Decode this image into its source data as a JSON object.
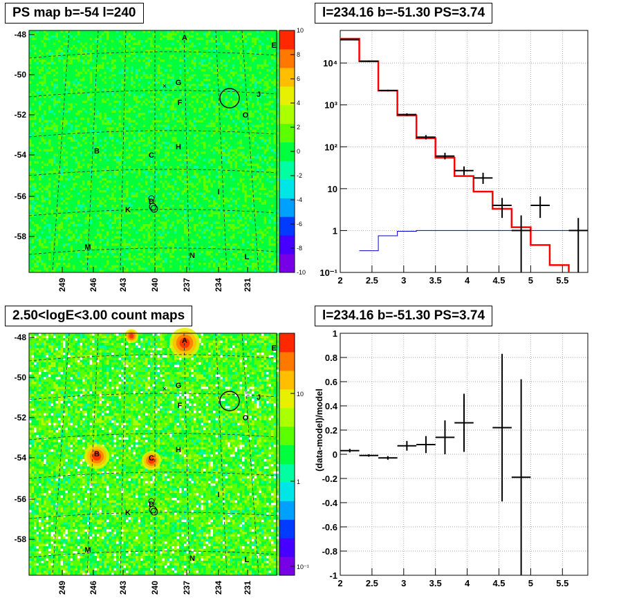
{
  "titles": {
    "ps_map": "PS map b=-54 l=240",
    "spectrum": "l=234.16 b=-51.30 PS=3.74",
    "count_map": "2.50<logE<3.00 count maps",
    "residual": "l=234.16 b=-51.30 PS=3.74"
  },
  "chart_data": [
    {
      "type": "heatmap",
      "name": "PS map",
      "x_ticks": [
        "249",
        "246",
        "243",
        "240",
        "237",
        "234",
        "231"
      ],
      "y_ticks": [
        "-48",
        "-50",
        "-52",
        "-54",
        "-56",
        "-58"
      ],
      "colorbar": {
        "ticks": [
          "10",
          "8",
          "6",
          "4",
          "2",
          "0",
          "-2",
          "-4",
          "-6",
          "-8",
          "-10"
        ],
        "range": [
          -10,
          10
        ]
      },
      "markers": [
        "A",
        "E",
        "G",
        "F",
        "J",
        "O",
        "B",
        "C",
        "H",
        "I",
        "D",
        "K",
        "M",
        "N",
        "L"
      ]
    },
    {
      "type": "line",
      "name": "spectrum",
      "log_y": true,
      "xlim": [
        2.0,
        5.9
      ],
      "ylim": [
        0.1,
        60000
      ],
      "x_ticks": [
        "2",
        "2.5",
        "3",
        "3.5",
        "4",
        "4.5",
        "5",
        "5.5"
      ],
      "y_ticks": [
        "10⁴",
        "10³",
        "10²",
        "10",
        "1",
        "10⁻¹"
      ],
      "model_red_step": {
        "bin_edges": [
          2.0,
          2.3,
          2.6,
          2.9,
          3.2,
          3.5,
          3.8,
          4.1,
          4.4,
          4.7,
          5.0,
          5.3,
          5.6,
          5.9
        ],
        "values": [
          38000,
          11000,
          2200,
          560,
          160,
          55,
          20,
          8.5,
          3.3,
          1.2,
          0.45,
          0.15,
          0.05
        ]
      },
      "point_source_blue_step": {
        "bin_edges": [
          2.3,
          2.6,
          2.9,
          3.2,
          3.5,
          3.8,
          4.1,
          4.4,
          4.7,
          5.0,
          5.3,
          5.6,
          5.9
        ],
        "values": [
          0.33,
          0.75,
          0.96,
          1.0,
          1.0,
          1.0,
          1.0,
          1.0,
          1.0,
          1.0,
          1.0,
          1.0
        ]
      },
      "data_points": [
        {
          "x": 2.15,
          "y": 36000,
          "ylo": 35000,
          "yhi": 37000
        },
        {
          "x": 2.45,
          "y": 11000,
          "ylo": 10500,
          "yhi": 11500
        },
        {
          "x": 2.75,
          "y": 2200,
          "ylo": 2100,
          "yhi": 2300
        },
        {
          "x": 3.05,
          "y": 590,
          "ylo": 550,
          "yhi": 630
        },
        {
          "x": 3.35,
          "y": 170,
          "ylo": 150,
          "yhi": 190
        },
        {
          "x": 3.65,
          "y": 60,
          "ylo": 50,
          "yhi": 72
        },
        {
          "x": 3.95,
          "y": 27,
          "ylo": 21,
          "yhi": 34
        },
        {
          "x": 4.25,
          "y": 18,
          "ylo": 13,
          "yhi": 24
        },
        {
          "x": 4.55,
          "y": 4.0,
          "ylo": 2.0,
          "yhi": 6.0
        },
        {
          "x": 4.85,
          "y": 1.0,
          "ylo": 0.1,
          "yhi": 2.3
        },
        {
          "x": 5.15,
          "y": 4.0,
          "ylo": 2.0,
          "yhi": 6.5
        },
        {
          "x": 5.75,
          "y": 1.0,
          "ylo": 0.1,
          "yhi": 2.0
        }
      ]
    },
    {
      "type": "heatmap",
      "name": "count maps",
      "x_ticks": [
        "249",
        "246",
        "243",
        "240",
        "237",
        "234",
        "231"
      ],
      "y_ticks": [
        "-48",
        "-50",
        "-52",
        "-54",
        "-56",
        "-58"
      ],
      "colorbar": {
        "log": true,
        "ticks": [
          "10",
          "1",
          "10⁻¹"
        ]
      },
      "markers": [
        "A",
        "E",
        "G",
        "F",
        "J",
        "O",
        "B",
        "C",
        "H",
        "I",
        "D",
        "K",
        "M",
        "N",
        "L"
      ]
    },
    {
      "type": "scatter",
      "name": "residual",
      "ylabel": "(data-model)/model",
      "xlim": [
        2.0,
        5.9
      ],
      "ylim": [
        -1.0,
        1.0
      ],
      "x_ticks": [
        "2",
        "2.5",
        "3",
        "3.5",
        "4",
        "4.5",
        "5",
        "5.5"
      ],
      "y_ticks": [
        "1",
        "0.8",
        "0.6",
        "0.4",
        "0.2",
        "0",
        "-0.2",
        "-0.4",
        "-0.6",
        "-0.8",
        "-1"
      ],
      "points": [
        {
          "x": 2.15,
          "y": 0.03,
          "ylo": 0.015,
          "yhi": 0.045
        },
        {
          "x": 2.45,
          "y": -0.01,
          "ylo": -0.02,
          "yhi": 0.0
        },
        {
          "x": 2.75,
          "y": -0.03,
          "ylo": -0.045,
          "yhi": -0.015
        },
        {
          "x": 3.05,
          "y": 0.07,
          "ylo": 0.03,
          "yhi": 0.11
        },
        {
          "x": 3.35,
          "y": 0.08,
          "ylo": 0.01,
          "yhi": 0.15
        },
        {
          "x": 3.65,
          "y": 0.14,
          "ylo": 0.0,
          "yhi": 0.28
        },
        {
          "x": 3.95,
          "y": 0.26,
          "ylo": 0.02,
          "yhi": 0.5
        },
        {
          "x": 4.55,
          "y": 0.22,
          "ylo": -0.39,
          "yhi": 0.83
        },
        {
          "x": 4.85,
          "y": -0.19,
          "ylo": -1.0,
          "yhi": 0.62
        }
      ]
    }
  ],
  "colors": {
    "model": "#ff0000",
    "source": "#0000cc",
    "data": "#000000",
    "grid": "#000000"
  }
}
